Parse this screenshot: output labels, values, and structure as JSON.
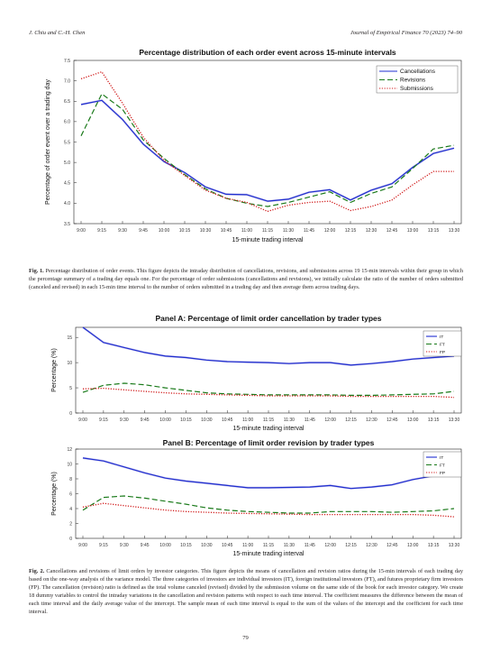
{
  "header": {
    "authors": "J. Chiu and C.-H. Chen",
    "journal": "Journal of Empirical Finance 70 (2023) 74–90"
  },
  "x_ticks": [
    "9:00",
    "9:15",
    "9:30",
    "9:45",
    "10:00",
    "10:15",
    "10:30",
    "10:45",
    "11:00",
    "11:15",
    "11:30",
    "11:45",
    "12:00",
    "12:15",
    "12:30",
    "12:45",
    "13:00",
    "13:15",
    "13:30"
  ],
  "figure1": {
    "caption_label": "Fig. 1.",
    "caption_text": "Percentage distribution of order events. This figure depicts the intraday distribution of cancellations, revisions, and submissions across 19 15-min intervals within their group in which the percentage summary of a trading day equals one. For the percentage of order submissions (cancellations and revisions), we initially calculate the ratio of the number of orders submitted (canceled and revised) in each 15-min time interval to the number of orders submitted in a trading day and then average them across trading days."
  },
  "figure2": {
    "caption_label": "Fig. 2.",
    "caption_text": "Cancellations and revisions of limit orders by investor categories. This figure depicts the means of cancellation and revision ratios during the 15-min intervals of each trading day based on the one-way analysis of the variance model. The three categories of investors are individual investors (IT), foreign institutional investors (FT), and futures proprietary firm investors (FP). The cancellation (revision) ratio is defined as the total volume canceled (revised) divided by the submission volume on the same side of the book for each investor category. We create 18 dummy variables to control the intraday variations in the cancellation and revision patterns with respect to each time interval. The coefficient measures the difference between the mean of each time interval and the daily average value of the intercept. The sample mean of each time interval is equal to the sum of the values of the intercept and the coefficient for each time interval."
  },
  "page_number": "79",
  "colors": {
    "blue": "#1f2fd0",
    "green": "#1a7a1a",
    "red": "#d01818"
  },
  "chart_data": [
    {
      "type": "line",
      "title": "Percentage distribution of each order event across 15-minute intervals",
      "xlabel": "15-minute trading interval",
      "ylabel": "Percentage of order event over a trading day",
      "ylim": [
        3.5,
        7.5
      ],
      "yticks": [
        "3.5",
        "4.0",
        "4.5",
        "5.0",
        "5.5",
        "6.0",
        "6.5",
        "7.0",
        "7.5"
      ],
      "legend_position": "top-right",
      "series": [
        {
          "name": "Cancellations",
          "style": "solid",
          "color": "#1f2fd0",
          "values": [
            6.42,
            6.52,
            6.05,
            5.45,
            5.02,
            4.75,
            4.4,
            4.22,
            4.21,
            4.05,
            4.1,
            4.27,
            4.33,
            4.08,
            4.32,
            4.48,
            4.88,
            5.22,
            5.35
          ]
        },
        {
          "name": "Revisions",
          "style": "dashed",
          "color": "#1a7a1a",
          "values": [
            5.65,
            6.68,
            6.3,
            5.55,
            5.1,
            4.7,
            4.35,
            4.12,
            4.0,
            3.92,
            4.02,
            4.15,
            4.28,
            4.02,
            4.24,
            4.4,
            4.85,
            5.33,
            5.42
          ]
        },
        {
          "name": "Submissions",
          "style": "dotted",
          "color": "#d01818",
          "values": [
            7.05,
            7.22,
            6.45,
            5.62,
            5.05,
            4.68,
            4.32,
            4.12,
            4.02,
            3.8,
            3.95,
            4.02,
            4.05,
            3.82,
            3.92,
            4.08,
            4.45,
            4.78,
            4.78
          ]
        }
      ]
    },
    {
      "type": "line",
      "title": "Panel A: Percentage of limit order cancellation by trader types",
      "xlabel": "15-minute trading interval",
      "ylabel": "Percentage (%)",
      "ylim": [
        0,
        17
      ],
      "yticks": [
        "0",
        "5",
        "10",
        "15"
      ],
      "legend_position": "top-right",
      "series": [
        {
          "name": "IT",
          "style": "solid",
          "color": "#1f2fd0",
          "values": [
            17.0,
            14.0,
            13.0,
            12.0,
            11.3,
            11.0,
            10.5,
            10.2,
            10.1,
            10.0,
            9.8,
            10.0,
            10.0,
            9.5,
            9.8,
            10.2,
            10.7,
            11.0,
            11.3
          ]
        },
        {
          "name": "FT",
          "style": "dashed",
          "color": "#1a7a1a",
          "values": [
            4.1,
            5.5,
            5.9,
            5.6,
            5.0,
            4.5,
            4.0,
            3.8,
            3.7,
            3.6,
            3.6,
            3.6,
            3.6,
            3.5,
            3.5,
            3.6,
            3.7,
            3.8,
            4.3
          ]
        },
        {
          "name": "FP",
          "style": "dotted",
          "color": "#d01818",
          "values": [
            4.8,
            4.9,
            4.6,
            4.3,
            4.0,
            3.8,
            3.7,
            3.6,
            3.5,
            3.4,
            3.4,
            3.4,
            3.4,
            3.3,
            3.3,
            3.3,
            3.3,
            3.3,
            3.1
          ]
        }
      ]
    },
    {
      "type": "line",
      "title": "Panel B: Percentage of limit order revision by trader types",
      "xlabel": "15-minute trading interval",
      "ylabel": "Percentage (%)",
      "ylim": [
        0,
        12
      ],
      "yticks": [
        "0",
        "2",
        "4",
        "6",
        "8",
        "10",
        "12"
      ],
      "legend_position": "top-right",
      "series": [
        {
          "name": "IT",
          "style": "solid",
          "color": "#1f2fd0",
          "values": [
            10.8,
            10.4,
            9.6,
            8.8,
            8.1,
            7.7,
            7.4,
            7.1,
            6.8,
            6.8,
            6.85,
            6.9,
            7.1,
            6.7,
            6.9,
            7.2,
            7.9,
            8.4,
            8.5
          ]
        },
        {
          "name": "FT",
          "style": "dashed",
          "color": "#1a7a1a",
          "values": [
            3.8,
            5.5,
            5.7,
            5.4,
            5.0,
            4.6,
            4.1,
            3.8,
            3.6,
            3.5,
            3.4,
            3.4,
            3.6,
            3.6,
            3.6,
            3.5,
            3.6,
            3.7,
            4.0
          ]
        },
        {
          "name": "FP",
          "style": "dotted",
          "color": "#d01818",
          "values": [
            4.2,
            4.7,
            4.4,
            4.1,
            3.8,
            3.6,
            3.5,
            3.4,
            3.35,
            3.3,
            3.25,
            3.2,
            3.2,
            3.2,
            3.2,
            3.2,
            3.2,
            3.1,
            2.9
          ]
        }
      ]
    }
  ]
}
